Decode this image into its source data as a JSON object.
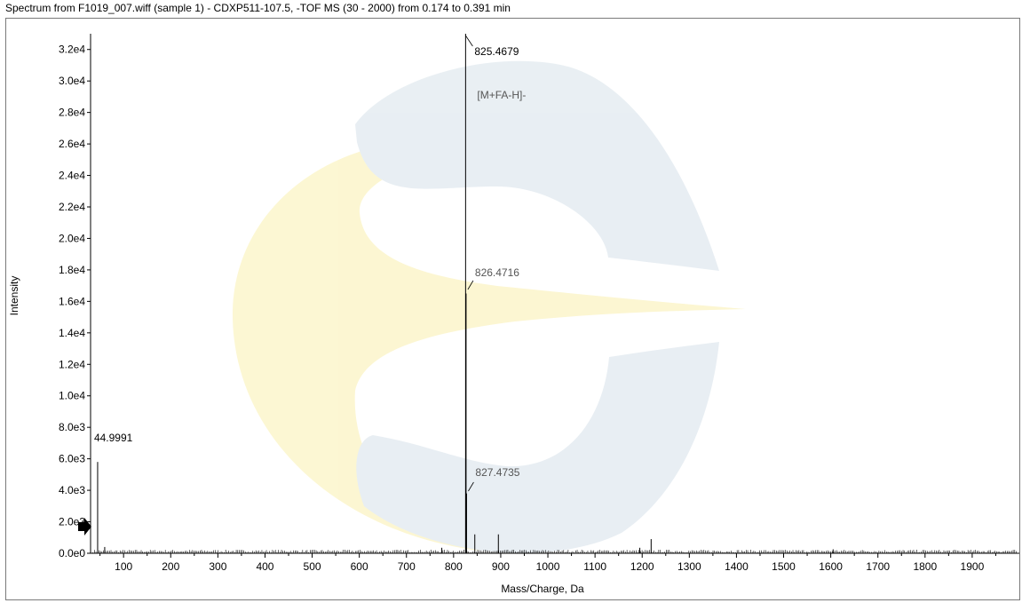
{
  "window": {
    "title": "Spectrum from F1019_007.wiff (sample 1) - CDXP511-107.5, -TOF MS (30 - 2000) from 0.174 to 0.391 min"
  },
  "chart_data": {
    "type": "bar",
    "xlabel": "Mass/Charge, Da",
    "ylabel": "Intensity",
    "xlim": [
      30,
      2000
    ],
    "ylim": [
      0,
      33000
    ],
    "x_ticks": [
      100,
      200,
      300,
      400,
      500,
      600,
      700,
      800,
      900,
      1000,
      1100,
      1200,
      1300,
      1400,
      1500,
      1600,
      1700,
      1800,
      1900
    ],
    "y_ticks": [
      {
        "value": 0,
        "label": "0.0e0"
      },
      {
        "value": 2000,
        "label": "2.0e3"
      },
      {
        "value": 4000,
        "label": "4.0e3"
      },
      {
        "value": 6000,
        "label": "6.0e3"
      },
      {
        "value": 8000,
        "label": "8.0e3"
      },
      {
        "value": 10000,
        "label": "1.0e4"
      },
      {
        "value": 12000,
        "label": "1.2e4"
      },
      {
        "value": 14000,
        "label": "1.4e4"
      },
      {
        "value": 16000,
        "label": "1.6e4"
      },
      {
        "value": 18000,
        "label": "1.8e4"
      },
      {
        "value": 20000,
        "label": "2.0e4"
      },
      {
        "value": 22000,
        "label": "2.2e4"
      },
      {
        "value": 24000,
        "label": "2.4e4"
      },
      {
        "value": 26000,
        "label": "2.6e4"
      },
      {
        "value": 28000,
        "label": "2.8e4"
      },
      {
        "value": 30000,
        "label": "3.0e4"
      },
      {
        "value": 32000,
        "label": "3.2e4"
      }
    ],
    "peaks": [
      {
        "mz": 44.9991,
        "intensity": 5800
      },
      {
        "mz": 60,
        "intensity": 400
      },
      {
        "mz": 775,
        "intensity": 350
      },
      {
        "mz": 825.4679,
        "intensity": 33000
      },
      {
        "mz": 826.4716,
        "intensity": 16500
      },
      {
        "mz": 827.4735,
        "intensity": 3800
      },
      {
        "mz": 845,
        "intensity": 1200
      },
      {
        "mz": 895,
        "intensity": 1200
      },
      {
        "mz": 1195,
        "intensity": 350
      },
      {
        "mz": 1219,
        "intensity": 900
      },
      {
        "mz": 1605,
        "intensity": 250
      }
    ],
    "labels": [
      {
        "text": "825.4679",
        "mz": 825.4679,
        "color": "#000000"
      },
      {
        "text": "[M+FA-H]-",
        "mz": 825.4679,
        "color": "#555555"
      },
      {
        "text": "826.4716",
        "mz": 826.4716,
        "color": "#555555"
      },
      {
        "text": "827.4735",
        "mz": 827.4735,
        "color": "#555555"
      },
      {
        "text": "44.9991",
        "mz": 44.9991,
        "color": "#000000"
      }
    ]
  }
}
